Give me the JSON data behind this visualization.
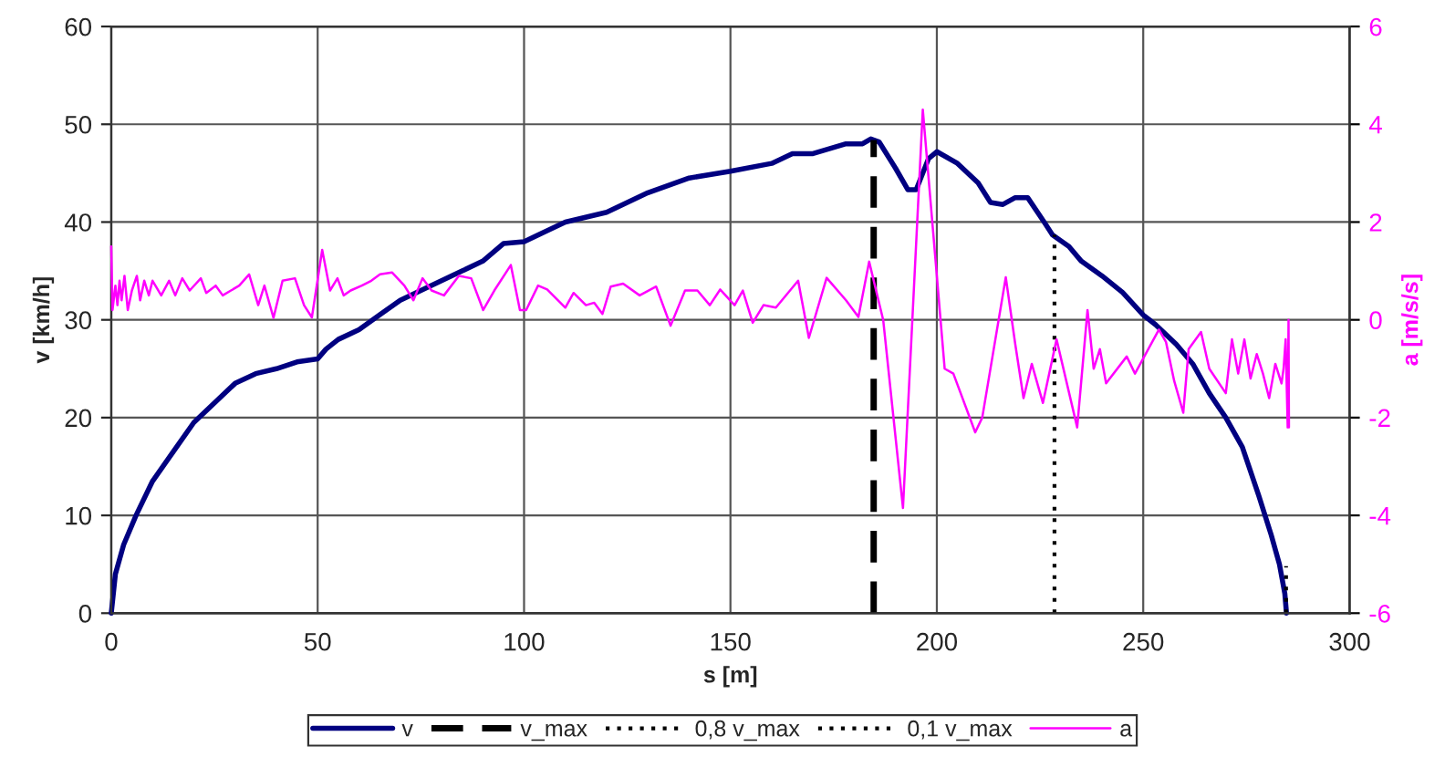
{
  "chart_data": {
    "type": "line",
    "xlabel": "s [m]",
    "ylabel": "v [km/h]",
    "y2label": "a [m/s/s]",
    "xlim": [
      0,
      300
    ],
    "xticks": [
      0,
      50,
      100,
      150,
      200,
      250,
      300
    ],
    "ylim": [
      0,
      60
    ],
    "yticks": [
      0,
      10,
      20,
      30,
      40,
      50,
      60
    ],
    "y2lim": [
      -6,
      6
    ],
    "y2ticks": [
      -6,
      -4,
      -2,
      0,
      2,
      4,
      6
    ],
    "grid": true,
    "legend": "bottom",
    "marker": "none",
    "series": [
      {
        "name": "v",
        "color": "#000080",
        "line_style": "solid",
        "x": [
          0,
          1,
          3,
          6,
          10,
          15,
          20,
          25,
          30,
          35,
          40,
          45,
          50,
          52,
          55,
          60,
          65,
          70,
          75,
          80,
          85,
          90,
          95,
          100,
          110,
          120,
          130,
          140,
          150,
          160,
          165,
          170,
          178,
          182,
          184,
          186,
          190,
          193,
          195,
          198,
          200,
          205,
          210,
          213,
          216,
          219,
          222,
          226,
          228,
          232,
          235,
          240,
          245,
          250,
          253,
          258,
          262,
          266,
          270,
          274,
          278,
          281,
          283,
          284.3,
          284.7
        ],
        "values": [
          0,
          4,
          7,
          10,
          13.5,
          16.5,
          19.5,
          21.5,
          23.5,
          24.5,
          25,
          25.7,
          26,
          27,
          28,
          29,
          30.5,
          32,
          33,
          34,
          35,
          36,
          37.8,
          38,
          40,
          41,
          43,
          44.5,
          45.2,
          46,
          47,
          47,
          48,
          48,
          48.5,
          48.2,
          45.5,
          43.3,
          43.3,
          46.5,
          47.2,
          46,
          44,
          42,
          41.8,
          42.5,
          42.5,
          40,
          38.7,
          37.5,
          36,
          34.5,
          32.8,
          30.5,
          29.5,
          27.5,
          25.5,
          22.5,
          20,
          17,
          12,
          8,
          5,
          2,
          0
        ]
      },
      {
        "name": "v_max",
        "color": "#000000",
        "line_style": "dashed",
        "x": [
          184.7,
          184.7
        ],
        "values": [
          0,
          48.4
        ]
      },
      {
        "name": "0,8 v_max",
        "color": "#000000",
        "line_style": "dotted",
        "x": [
          228.5,
          228.5
        ],
        "values": [
          0,
          38.7
        ]
      },
      {
        "name": "0,1 v_max",
        "color": "#000000",
        "line_style": "dotted",
        "x": [
          284.6,
          284.6
        ],
        "values": [
          0,
          4.8
        ]
      },
      {
        "name": "a",
        "color": "#ff00ff",
        "line_style": "solid",
        "axis": "y2",
        "x": [
          0,
          0.3,
          1,
          1.5,
          2,
          2.5,
          3.2,
          4,
          5,
          6.2,
          7,
          8,
          9.1,
          10,
          12.1,
          14,
          15.5,
          17.2,
          19,
          21.7,
          23,
          25.3,
          27,
          29,
          31,
          33.4,
          35.6,
          37.1,
          39.3,
          41.5,
          44.5,
          46.7,
          48.6,
          51.1,
          53,
          54.8,
          56.3,
          58,
          60.7,
          63,
          65.1,
          68,
          71,
          73.2,
          75.4,
          77.6,
          80.6,
          84.2,
          87.2,
          90.1,
          92.8,
          96.8,
          99,
          100.5,
          103.4,
          105.6,
          110,
          112,
          115,
          117,
          119,
          121,
          124,
          128,
          132,
          135.5,
          139,
          142,
          145,
          147.5,
          151,
          153,
          155.4,
          158,
          161,
          166.4,
          169,
          173.3,
          178,
          181,
          183.6,
          187,
          191.8,
          196.6,
          201.9,
          204,
          209.3,
          211,
          216.7,
          219,
          221,
          223,
          225.7,
          229,
          234,
          236.5,
          238,
          239.5,
          241,
          246,
          248,
          253.8,
          255.5,
          257.5,
          259.7,
          261,
          264,
          266,
          270,
          271.5,
          273,
          274.5,
          276,
          277.5,
          279,
          280.5,
          282,
          283.5,
          284,
          284.5,
          285,
          285.2,
          285.3
        ],
        "values": [
          1.5,
          0.2,
          0.7,
          0.3,
          0.8,
          0.4,
          0.9,
          0.2,
          0.6,
          0.9,
          0.4,
          0.8,
          0.5,
          0.8,
          0.5,
          0.8,
          0.5,
          0.85,
          0.6,
          0.85,
          0.55,
          0.7,
          0.5,
          0.6,
          0.7,
          0.93,
          0.3,
          0.7,
          0.04,
          0.8,
          0.85,
          0.3,
          0.05,
          1.43,
          0.6,
          0.85,
          0.5,
          0.6,
          0.7,
          0.8,
          0.93,
          0.97,
          0.7,
          0.4,
          0.85,
          0.6,
          0.5,
          0.9,
          0.85,
          0.2,
          0.6,
          1.12,
          0.2,
          0.2,
          0.7,
          0.62,
          0.25,
          0.55,
          0.3,
          0.35,
          0.12,
          0.68,
          0.74,
          0.5,
          0.68,
          -0.12,
          0.6,
          0.6,
          0.3,
          0.62,
          0.3,
          0.6,
          -0.06,
          0.3,
          0.25,
          0.8,
          -0.37,
          0.86,
          0.4,
          0.06,
          1.19,
          0,
          -3.85,
          4.3,
          -1.0,
          -1.1,
          -2.3,
          -2.0,
          0.87,
          -0.5,
          -1.6,
          -0.9,
          -1.7,
          -0.4,
          -2.2,
          0.2,
          -1.0,
          -0.6,
          -1.3,
          -0.75,
          -1.1,
          -0.2,
          -0.45,
          -1.25,
          -1.9,
          -0.6,
          -0.25,
          -1.0,
          -1.5,
          -0.4,
          -1.1,
          -0.4,
          -1.2,
          -0.7,
          -1.1,
          -1.6,
          -0.9,
          -1.3,
          -1.0,
          -0.4,
          -2.2,
          0,
          -2.2
        ]
      }
    ]
  }
}
